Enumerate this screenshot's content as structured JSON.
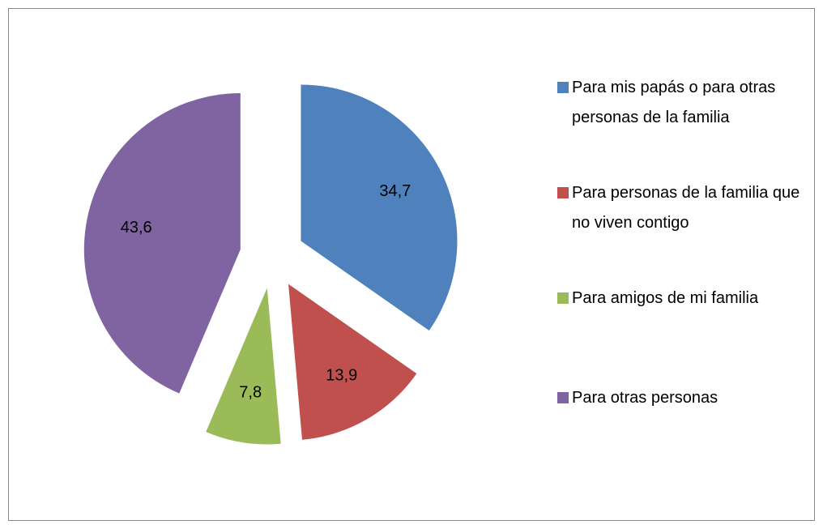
{
  "chart_data": {
    "type": "pie",
    "categories": [
      "Para mis papás o para otras personas de la familia",
      "Para personas de la familia que no viven contigo",
      "Para amigos de mi familia",
      "Para otras personas"
    ],
    "values": [
      34.7,
      13.9,
      7.8,
      43.6
    ],
    "value_labels": [
      "34,7",
      "13,9",
      "7,8",
      "43,6"
    ],
    "colors": [
      "#4f81bd",
      "#c0504d",
      "#9bbb59",
      "#8064a2"
    ],
    "legend": "right"
  }
}
